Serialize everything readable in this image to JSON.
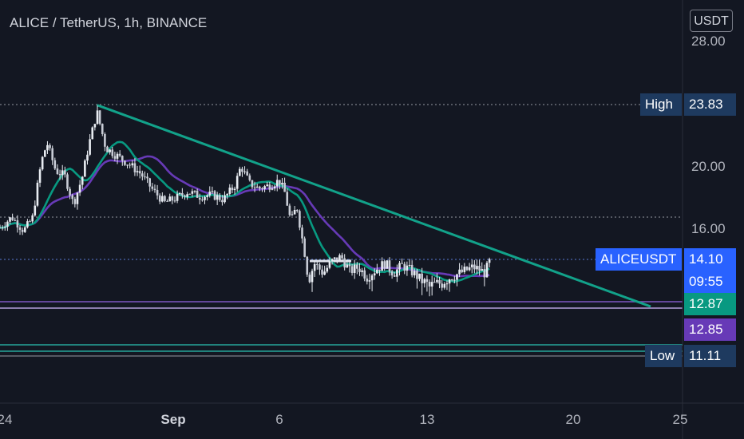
{
  "header": {
    "title": "ALICE / TetherUS, 1h, BINANCE",
    "currency": "USDT"
  },
  "chart_data": {
    "type": "candlestick",
    "symbol": "ALICEUSDT",
    "interval": "1h",
    "exchange": "BINANCE",
    "y_ticks": [
      "28.00",
      "20.00",
      "16.00"
    ],
    "x_ticks": [
      {
        "label": "24",
        "bold": false
      },
      {
        "label": "Sep",
        "bold": true
      },
      {
        "label": "6",
        "bold": false
      },
      {
        "label": "13",
        "bold": false
      },
      {
        "label": "20",
        "bold": false
      },
      {
        "label": "25",
        "bold": false
      },
      {
        "label": "",
        "bold": false
      }
    ],
    "price_path": [
      {
        "t": 0,
        "p": 16.2
      },
      {
        "t": 4,
        "p": 16.9
      },
      {
        "t": 8,
        "p": 16.0
      },
      {
        "t": 11,
        "p": 16.8
      },
      {
        "t": 14,
        "p": 20.3
      },
      {
        "t": 16,
        "p": 21.5
      },
      {
        "t": 19,
        "p": 19.8
      },
      {
        "t": 22,
        "p": 19.5
      },
      {
        "t": 25,
        "p": 17.7
      },
      {
        "t": 28,
        "p": 19.4
      },
      {
        "t": 30,
        "p": 21.2
      },
      {
        "t": 33,
        "p": 23.4
      },
      {
        "t": 36,
        "p": 21.2
      },
      {
        "t": 40,
        "p": 20.7
      },
      {
        "t": 44,
        "p": 20.2
      },
      {
        "t": 48,
        "p": 19.6
      },
      {
        "t": 52,
        "p": 18.6
      },
      {
        "t": 56,
        "p": 17.8
      },
      {
        "t": 60,
        "p": 18.1
      },
      {
        "t": 64,
        "p": 18.5
      },
      {
        "t": 68,
        "p": 18.2
      },
      {
        "t": 72,
        "p": 18.3
      },
      {
        "t": 76,
        "p": 18.0
      },
      {
        "t": 80,
        "p": 18.9
      },
      {
        "t": 82,
        "p": 20.1
      },
      {
        "t": 85,
        "p": 19.0
      },
      {
        "t": 88,
        "p": 18.7
      },
      {
        "t": 92,
        "p": 18.9
      },
      {
        "t": 95,
        "p": 19.2
      },
      {
        "t": 97,
        "p": 18.4
      },
      {
        "t": 99,
        "p": 16.6
      },
      {
        "t": 101,
        "p": 17.6
      },
      {
        "t": 103,
        "p": 15.3
      },
      {
        "t": 105,
        "p": 13.0
      },
      {
        "t": 107,
        "p": 13.9
      },
      {
        "t": 110,
        "p": 13.4
      },
      {
        "t": 113,
        "p": 14.0
      },
      {
        "t": 116,
        "p": 14.3
      },
      {
        "t": 119,
        "p": 13.5
      },
      {
        "t": 122,
        "p": 13.7
      },
      {
        "t": 125,
        "p": 13.2
      },
      {
        "t": 128,
        "p": 13.6
      },
      {
        "t": 131,
        "p": 13.9
      },
      {
        "t": 134,
        "p": 13.4
      },
      {
        "t": 137,
        "p": 13.8
      },
      {
        "t": 140,
        "p": 13.5
      },
      {
        "t": 143,
        "p": 13.1
      },
      {
        "t": 146,
        "p": 12.8
      },
      {
        "t": 149,
        "p": 12.9
      },
      {
        "t": 152,
        "p": 13.1
      },
      {
        "t": 155,
        "p": 13.3
      },
      {
        "t": 158,
        "p": 13.5
      },
      {
        "t": 161,
        "p": 13.7
      },
      {
        "t": 163,
        "p": 13.6
      },
      {
        "t": 165,
        "p": 13.4
      },
      {
        "t": 167,
        "p": 14.1
      }
    ],
    "t_range": [
      0,
      230
    ],
    "pixel_ranges": {
      "x": [
        0,
        855
      ],
      "y": [
        30,
        505
      ]
    },
    "levels": [
      {
        "name": "High",
        "value": "23.83",
        "price": 23.83,
        "color": "#1e3a5f",
        "style": "dotted"
      },
      {
        "name": "",
        "value": "",
        "price": 16.9,
        "color": "#787b86",
        "style": "dotted"
      },
      {
        "name": "ALICEUSDT",
        "value": "14.10",
        "price": 14.1,
        "color": "#2962ff",
        "style": "dotted"
      },
      {
        "name": "Low",
        "value": "11.11",
        "price": 11.11,
        "color": "#1e3a5f",
        "style": "solid"
      }
    ],
    "countdown": "09:55",
    "ma_values": [
      {
        "name": "",
        "value": "12.87",
        "color": "#089981"
      },
      {
        "name": "",
        "value": "12.85",
        "color": "#673ab7"
      }
    ],
    "trendline": {
      "from": {
        "t": 33,
        "p": 23.8
      },
      "to": {
        "t": 207,
        "p": 12.9
      },
      "color": "#12a28a"
    }
  }
}
